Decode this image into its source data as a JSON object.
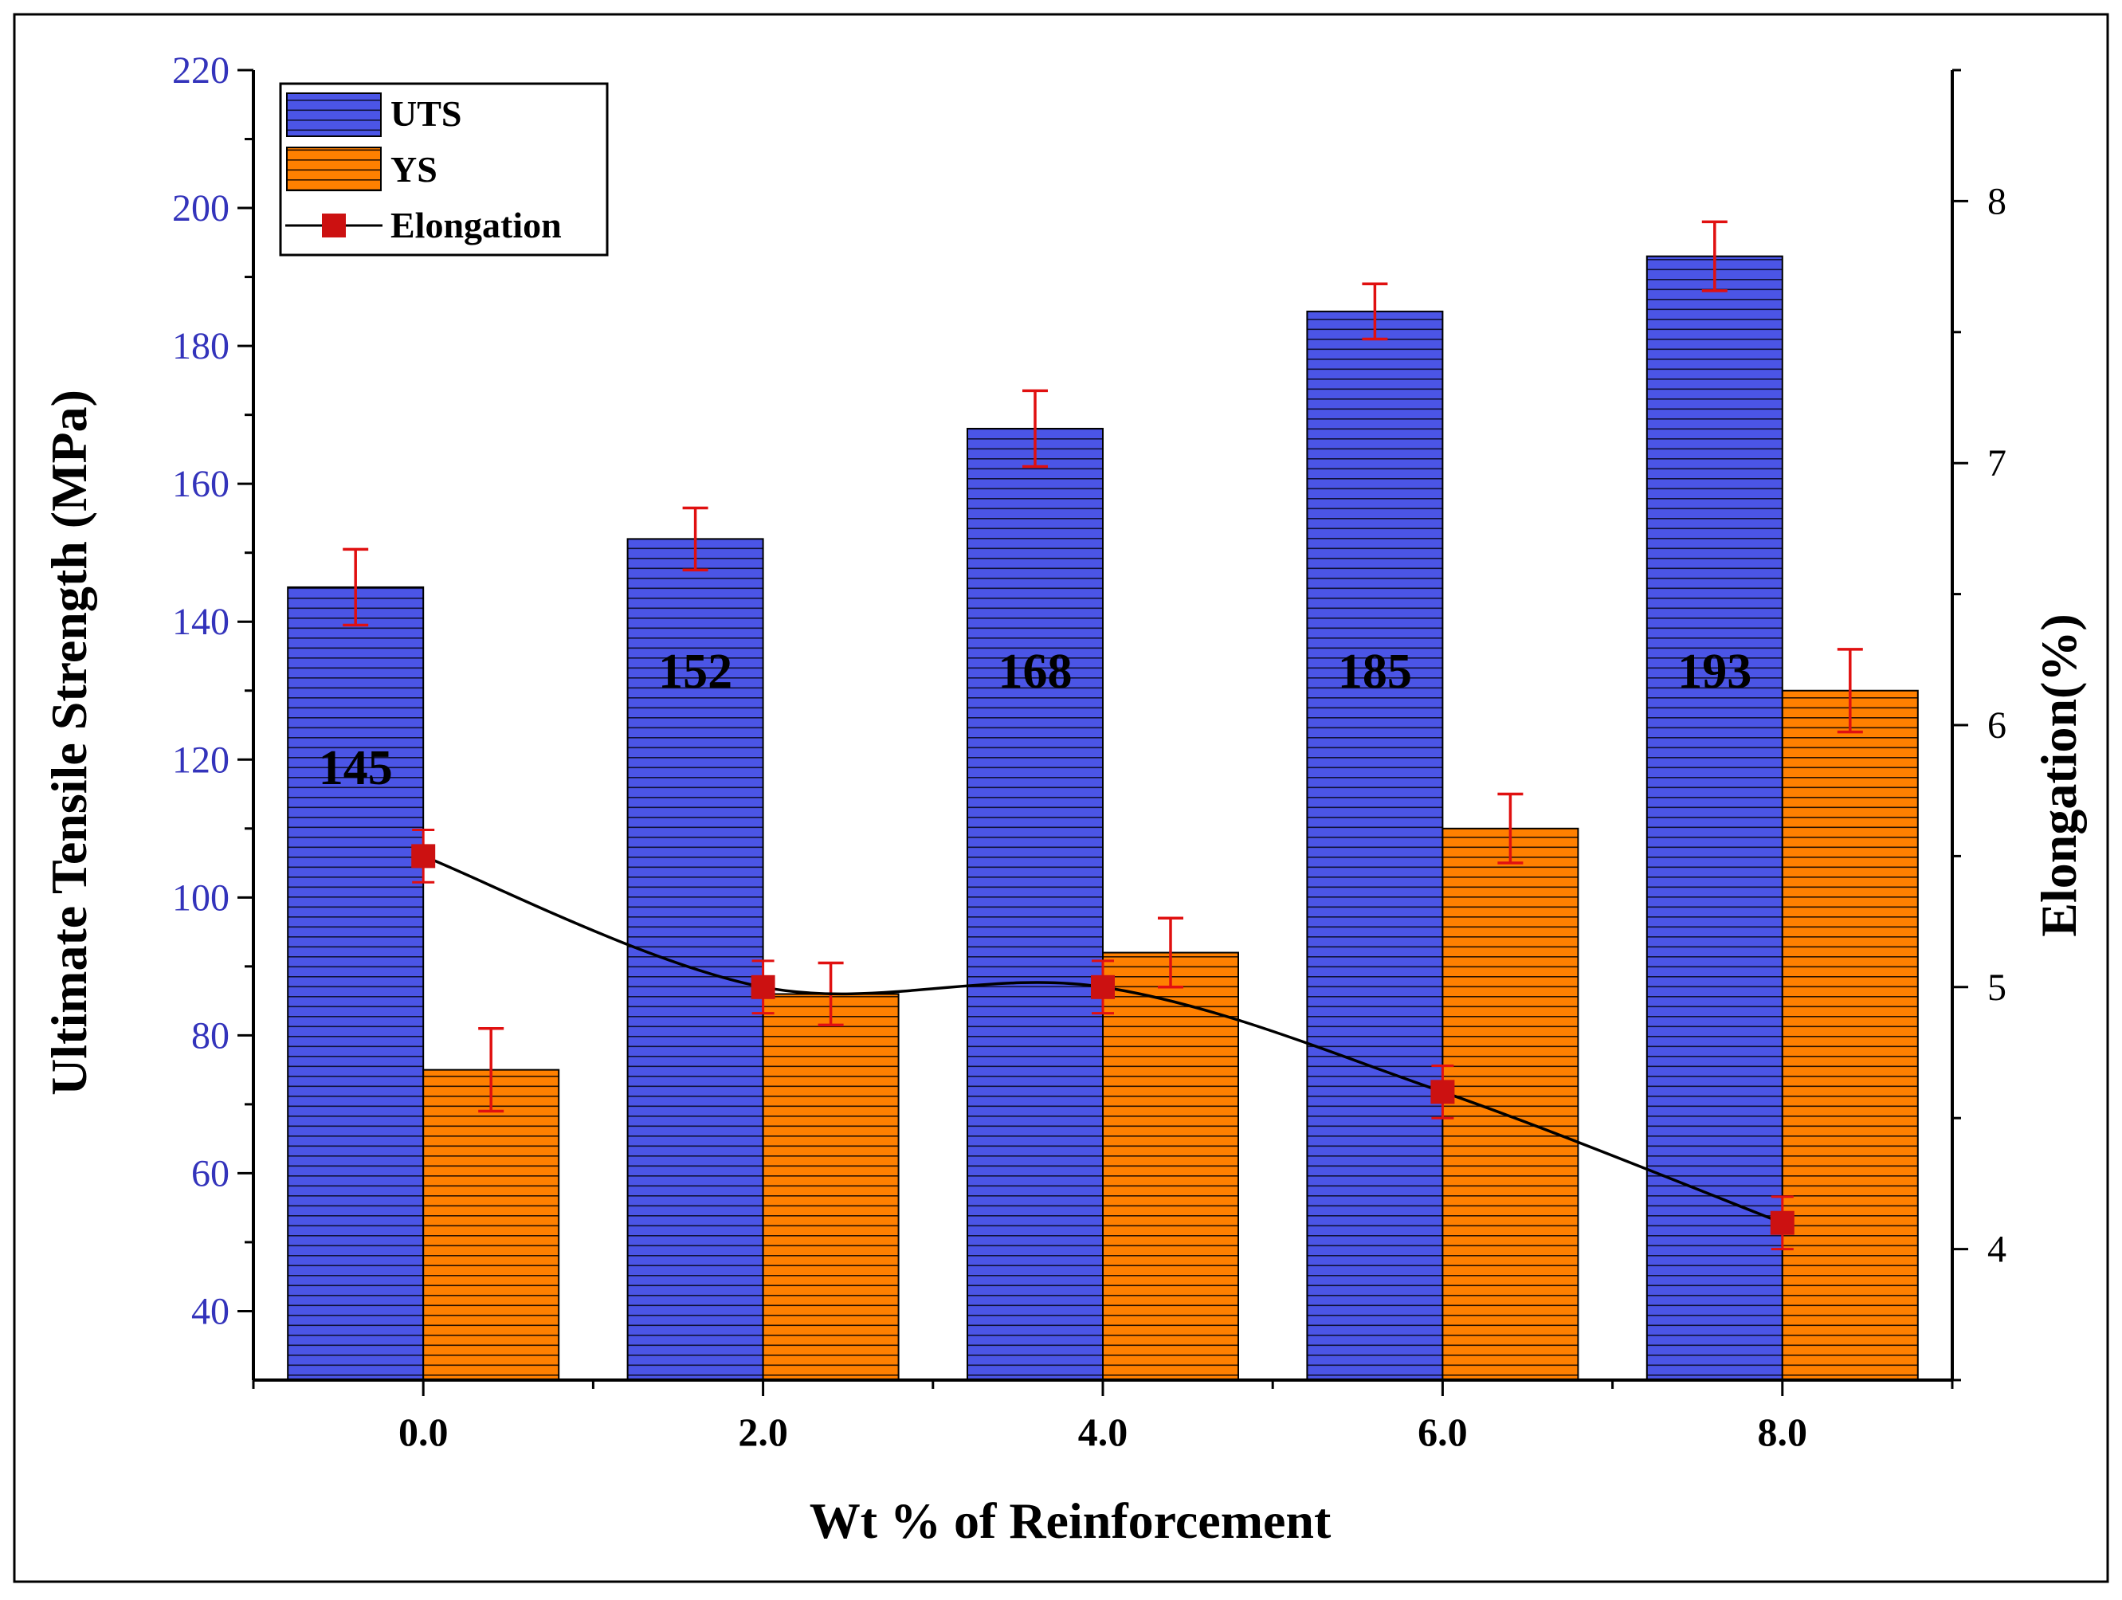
{
  "chart_data": {
    "type": "bar",
    "title": "",
    "xlabel": "Wt %  of Reinforcement",
    "ylabel": "Ultimate Tensile Strength (MPa)",
    "y2label": "Elongation(%)",
    "categories": [
      "0.0",
      "2.0",
      "4.0",
      "6.0",
      "8.0"
    ],
    "x_values": [
      0.0,
      2.0,
      4.0,
      6.0,
      8.0
    ],
    "xlim": [
      -1.0,
      9.0
    ],
    "ylim": [
      30,
      220
    ],
    "y2lim": [
      3.5,
      8.5
    ],
    "y_ticks": [
      40,
      60,
      80,
      100,
      120,
      140,
      160,
      180,
      200,
      220
    ],
    "y2_ticks": [
      4,
      5,
      6,
      7,
      8
    ],
    "series": [
      {
        "name": "UTS",
        "type": "bar",
        "axis": "left",
        "color": "#4B55E6",
        "values": [
          145,
          152,
          168,
          185,
          193
        ],
        "errors": [
          5.5,
          4.5,
          5.5,
          4,
          5
        ],
        "labels": [
          "145",
          "152",
          "168",
          "185",
          "193"
        ]
      },
      {
        "name": "YS",
        "type": "bar",
        "axis": "left",
        "color": "#FF8000",
        "values": [
          75,
          86,
          92,
          110,
          130
        ],
        "errors": [
          6,
          4.5,
          5,
          5,
          6
        ]
      },
      {
        "name": "Elongation",
        "type": "line",
        "axis": "right",
        "color": "#CC1111",
        "values": [
          5.5,
          5.0,
          5.0,
          4.6,
          4.1
        ],
        "errors": [
          0.1,
          0.1,
          0.1,
          0.1,
          0.1
        ]
      }
    ],
    "legend": {
      "placement": "top-left",
      "entries": [
        "UTS",
        "YS",
        "Elongation"
      ]
    },
    "grid": false
  }
}
